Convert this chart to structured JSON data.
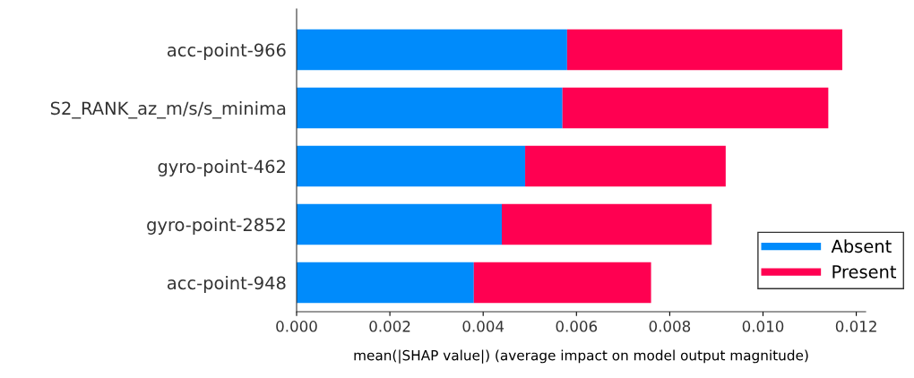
{
  "chart_data": {
    "type": "bar",
    "orientation": "horizontal",
    "stacked": true,
    "xlabel": "mean(|SHAP value|) (average impact on model output magnitude)",
    "categories": [
      "acc-point-966",
      "S2_RANK_az_m/s/s_minima",
      "gyro-point-462",
      "gyro-point-2852",
      "acc-point-948"
    ],
    "series": [
      {
        "name": "Absent",
        "color": "#008bfb",
        "values": [
          0.0058,
          0.0057,
          0.0049,
          0.0044,
          0.0038
        ]
      },
      {
        "name": "Present",
        "color": "#ff0051",
        "values": [
          0.0059,
          0.0057,
          0.0043,
          0.0045,
          0.0038
        ]
      }
    ],
    "xlim": [
      0,
      0.0122
    ],
    "xticks": [
      {
        "value": 0,
        "label": "0.000"
      },
      {
        "value": 0.002,
        "label": "0.002"
      },
      {
        "value": 0.004,
        "label": "0.004"
      },
      {
        "value": 0.006,
        "label": "0.006"
      },
      {
        "value": 0.008,
        "label": "0.008"
      },
      {
        "value": 0.01,
        "label": "0.010"
      },
      {
        "value": 0.012,
        "label": "0.012"
      }
    ],
    "grid": false,
    "legend": "bottom right"
  }
}
